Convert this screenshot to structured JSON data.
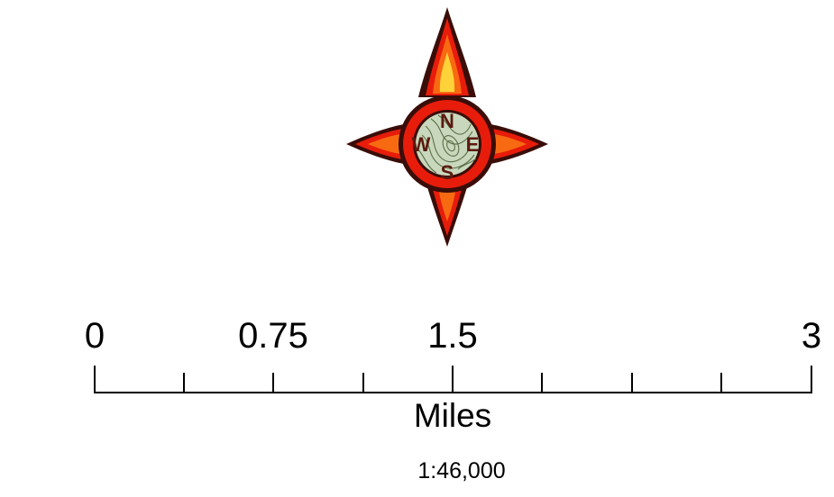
{
  "north_arrow": {
    "icon": "flame-compass-rose-icon",
    "letters": {
      "n": "N",
      "e": "E",
      "s": "S",
      "w": "W"
    },
    "colors": {
      "outline": "#3a0d08",
      "red": "#e81c0b",
      "orange": "#f86a12",
      "yellow": "#ffd23a",
      "topo_fill": "#c9d8bc",
      "topo_line": "#5b6e4a",
      "letter": "#5a1a10"
    }
  },
  "scale_bar": {
    "labels": [
      "0",
      "0.75",
      "1.5",
      "3"
    ],
    "units": "Miles",
    "ratio": "1:46,000",
    "color": "#000000"
  }
}
